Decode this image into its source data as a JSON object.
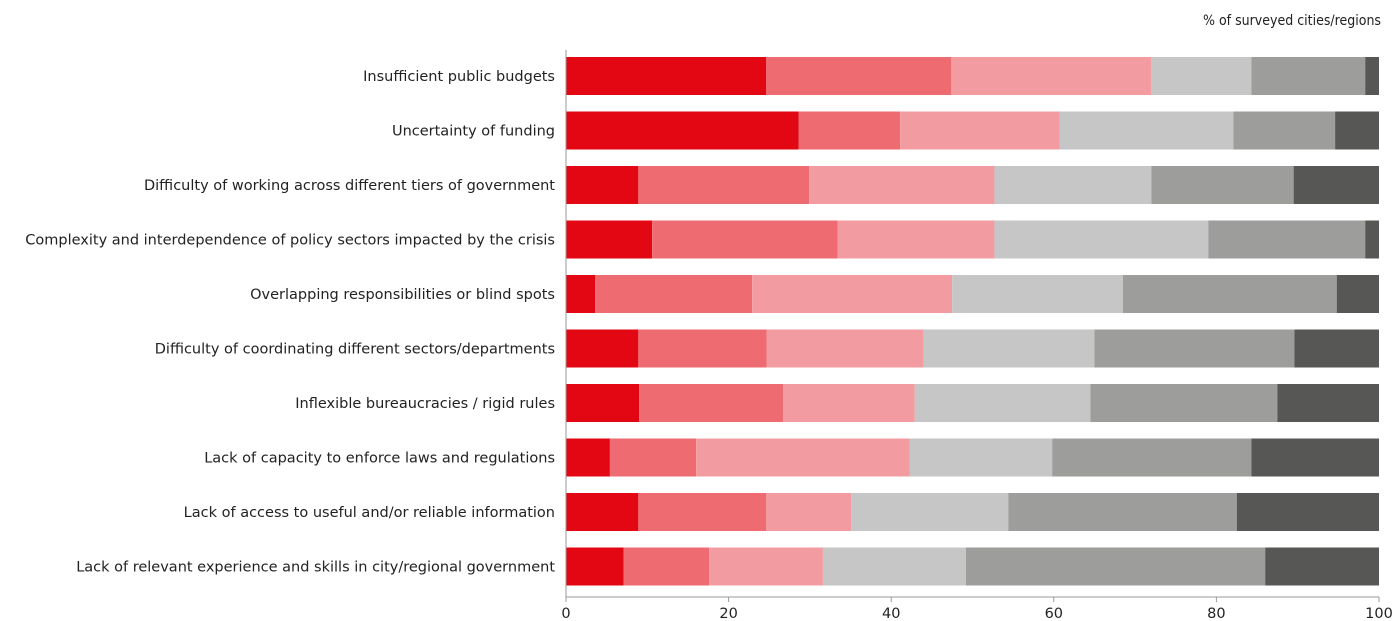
{
  "chart_data": {
    "type": "bar",
    "orientation": "horizontal",
    "stacked": true,
    "unit_label": "% of surveyed cities/regions",
    "categories": [
      "Insufficient public budgets",
      "Uncertainty of funding",
      "Difficulty of working across different tiers of government",
      "Complexity and interdependence of policy sectors impacted by the crisis",
      "Overlapping responsibilities or blind spots",
      "Difficulty of coordinating different sectors/departments",
      "Inflexible bureaucracies / rigid rules",
      "Lack of capacity to enforce laws and regulations",
      "Lack of access to useful and/or reliable information",
      "Lack of relevant experience and skills in city/regional government"
    ],
    "series": [
      {
        "color": "#e30613",
        "values": [
          24.6,
          28.6,
          8.9,
          10.6,
          3.6,
          8.9,
          9.0,
          5.4,
          8.9,
          7.1
        ]
      },
      {
        "color": "#ee6b72",
        "values": [
          22.8,
          12.5,
          21.0,
          22.8,
          19.3,
          15.8,
          17.7,
          10.6,
          15.7,
          10.5
        ]
      },
      {
        "color": "#f29ca1",
        "values": [
          24.6,
          19.6,
          22.8,
          19.3,
          24.6,
          19.3,
          16.2,
          26.3,
          10.5,
          14.0
        ]
      },
      {
        "color": "#c6c6c6",
        "values": [
          12.3,
          21.4,
          19.3,
          26.3,
          21.0,
          21.0,
          21.6,
          17.5,
          19.3,
          17.6
        ]
      },
      {
        "color": "#9d9d9c",
        "values": [
          14.0,
          12.5,
          17.5,
          19.3,
          26.3,
          24.6,
          23.0,
          24.5,
          28.1,
          36.8
        ]
      },
      {
        "color": "#575756",
        "values": [
          1.7,
          5.4,
          10.5,
          1.7,
          5.2,
          10.4,
          12.5,
          15.7,
          17.5,
          14.0
        ]
      }
    ],
    "xlim": [
      0,
      100
    ],
    "xticks": [
      0,
      20,
      40,
      60,
      80,
      100
    ],
    "grid": false,
    "legend": "none"
  }
}
